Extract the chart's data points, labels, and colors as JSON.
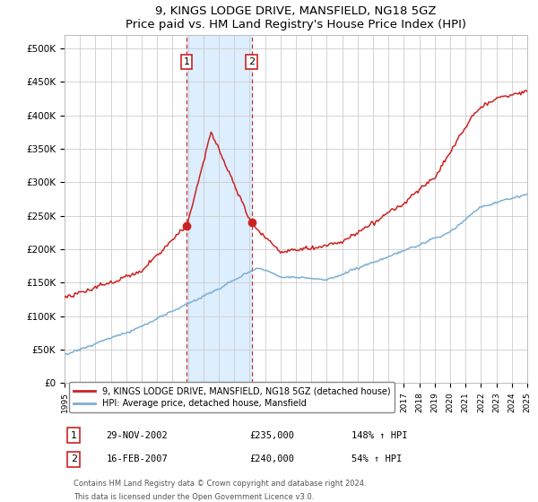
{
  "title": "9, KINGS LODGE DRIVE, MANSFIELD, NG18 5GZ",
  "subtitle": "Price paid vs. HM Land Registry's House Price Index (HPI)",
  "ylim": [
    0,
    520000
  ],
  "yticks": [
    0,
    50000,
    100000,
    150000,
    200000,
    250000,
    300000,
    350000,
    400000,
    450000,
    500000
  ],
  "ytick_labels": [
    "£0",
    "£50K",
    "£100K",
    "£150K",
    "£200K",
    "£250K",
    "£300K",
    "£350K",
    "£400K",
    "£450K",
    "£500K"
  ],
  "x_start_year": 1995,
  "x_end_year": 2025,
  "hpi_color": "#7bafd4",
  "price_color": "#cc2222",
  "purchase1_date": "29-NOV-2002",
  "purchase1_price": 235000,
  "purchase1_hpi_pct": "148%",
  "purchase2_date": "16-FEB-2007",
  "purchase2_price": 240000,
  "purchase2_hpi_pct": "54%",
  "legend_label1": "9, KINGS LODGE DRIVE, MANSFIELD, NG18 5GZ (detached house)",
  "legend_label2": "HPI: Average price, detached house, Mansfield",
  "footer1": "Contains HM Land Registry data © Crown copyright and database right 2024.",
  "footer2": "This data is licensed under the Open Government Licence v3.0.",
  "shaded_region_color": "#ddeeff",
  "dashed_line_color": "#cc2222",
  "background_color": "#ffffff",
  "grid_color": "#cccccc"
}
